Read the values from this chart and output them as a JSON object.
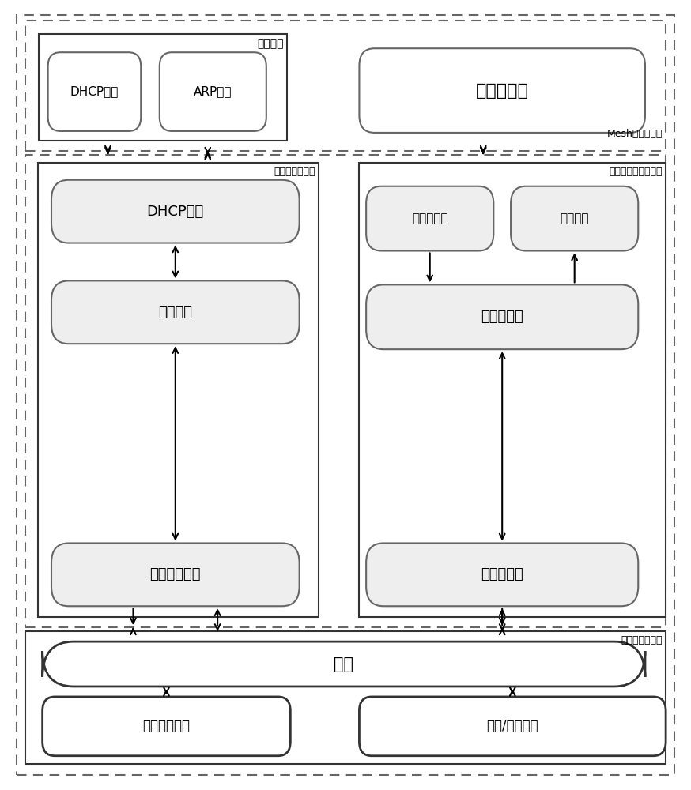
{
  "fig_width": 8.74,
  "fig_height": 10.0,
  "labels": {
    "dhcp_request": "DHCP请求",
    "arp_receive": "ARP接收",
    "access_module": "接入模块",
    "data_packet_module": "数据包模块",
    "mesh_label": "Mesh客户端框图",
    "dynamic_cluster_module": "动态簇维护模块",
    "data_multicast_module": "数据多播组维护模块",
    "dhcp_service": "DHCP服务",
    "cluster_algorithm": "成簇算法",
    "dynamic_cluster_multicast": "动态簇多播组",
    "data_intercept": "数据包拦截",
    "data_forward": "数据转发",
    "data_proxy": "数据包代理",
    "data_multicast": "数据多播组",
    "routing_module": "数据包路由模块",
    "routing": "路由",
    "link_state": "链路状态信息",
    "multicast_unicast": "多播/单播通信"
  }
}
